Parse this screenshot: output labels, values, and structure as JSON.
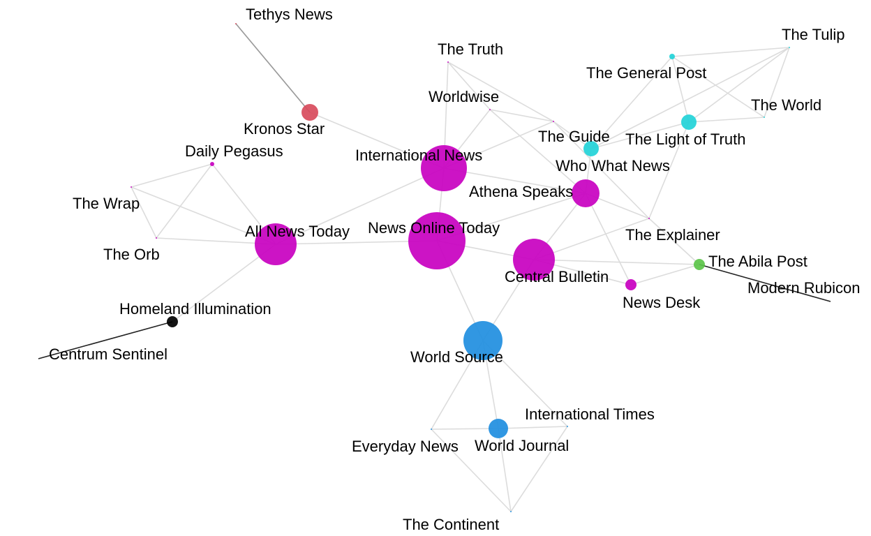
{
  "colors": {
    "magenta": "#c800c0",
    "blue": "#1f8ee0",
    "cyan": "#22d3d8",
    "red": "#d84b5c",
    "green": "#5cc44a",
    "black": "#000000",
    "edge": "#dcdcdc"
  },
  "nodes": [
    {
      "id": "tethys_news",
      "label": "Tethys News",
      "group": "red"
    },
    {
      "id": "kronos_star",
      "label": "Kronos Star",
      "group": "red"
    },
    {
      "id": "the_truth",
      "label": "The Truth",
      "group": "magenta"
    },
    {
      "id": "worldwise",
      "label": "Worldwise",
      "group": "magenta"
    },
    {
      "id": "international_news",
      "label": "International News",
      "group": "magenta"
    },
    {
      "id": "daily_pegasus",
      "label": "Daily Pegasus",
      "group": "magenta"
    },
    {
      "id": "the_wrap",
      "label": "The Wrap",
      "group": "magenta"
    },
    {
      "id": "the_orb",
      "label": "The Orb",
      "group": "magenta"
    },
    {
      "id": "all_news_today",
      "label": "All News Today",
      "group": "magenta"
    },
    {
      "id": "news_online_today",
      "label": "News Online Today",
      "group": "magenta"
    },
    {
      "id": "athena_speaks",
      "label": "Athena Speaks",
      "group": "magenta"
    },
    {
      "id": "who_what_news",
      "label": "Who What News",
      "group": "magenta"
    },
    {
      "id": "the_explainer",
      "label": "The Explainer",
      "group": "magenta"
    },
    {
      "id": "central_bulletin",
      "label": "Central Bulletin",
      "group": "magenta"
    },
    {
      "id": "news_desk",
      "label": "News Desk",
      "group": "magenta"
    },
    {
      "id": "the_guide",
      "label": "The Guide",
      "group": "cyan"
    },
    {
      "id": "the_general_post",
      "label": "The General Post",
      "group": "cyan"
    },
    {
      "id": "the_tulip",
      "label": "The Tulip",
      "group": "cyan"
    },
    {
      "id": "the_world",
      "label": "The World",
      "group": "cyan"
    },
    {
      "id": "the_light_of_truth",
      "label": "The Light of Truth",
      "group": "cyan"
    },
    {
      "id": "the_abila_post",
      "label": "The Abila Post",
      "group": "green"
    },
    {
      "id": "modern_rubicon",
      "label": "Modern Rubicon",
      "group": "black"
    },
    {
      "id": "homeland_illumination",
      "label": "Homeland Illumination",
      "group": "black"
    },
    {
      "id": "centrum_sentinel",
      "label": "Centrum Sentinel",
      "group": "black"
    },
    {
      "id": "world_source",
      "label": "World Source",
      "group": "blue"
    },
    {
      "id": "world_journal",
      "label": "World Journal",
      "group": "blue"
    },
    {
      "id": "international_times",
      "label": "International Times",
      "group": "blue"
    },
    {
      "id": "everyday_news",
      "label": "Everyday News",
      "group": "blue"
    },
    {
      "id": "the_continent",
      "label": "The Continent",
      "group": "blue"
    }
  ],
  "edges": [
    [
      "tethys_news",
      "kronos_star"
    ],
    [
      "kronos_star",
      "international_news"
    ],
    [
      "the_truth",
      "international_news"
    ],
    [
      "the_truth",
      "worldwise"
    ],
    [
      "the_truth",
      "who_what_news"
    ],
    [
      "worldwise",
      "international_news"
    ],
    [
      "worldwise",
      "athena_speaks"
    ],
    [
      "worldwise",
      "who_what_news"
    ],
    [
      "international_news",
      "news_online_today"
    ],
    [
      "international_news",
      "athena_speaks"
    ],
    [
      "international_news",
      "who_what_news"
    ],
    [
      "international_news",
      "all_news_today"
    ],
    [
      "daily_pegasus",
      "the_wrap"
    ],
    [
      "daily_pegasus",
      "the_orb"
    ],
    [
      "daily_pegasus",
      "all_news_today"
    ],
    [
      "the_wrap",
      "the_orb"
    ],
    [
      "the_wrap",
      "all_news_today"
    ],
    [
      "the_orb",
      "all_news_today"
    ],
    [
      "all_news_today",
      "news_online_today"
    ],
    [
      "all_news_today",
      "homeland_illumination"
    ],
    [
      "news_online_today",
      "athena_speaks"
    ],
    [
      "news_online_today",
      "central_bulletin"
    ],
    [
      "news_online_today",
      "world_source"
    ],
    [
      "athena_speaks",
      "central_bulletin"
    ],
    [
      "athena_speaks",
      "the_explainer"
    ],
    [
      "athena_speaks",
      "news_desk"
    ],
    [
      "athena_speaks",
      "the_guide"
    ],
    [
      "who_what_news",
      "the_guide"
    ],
    [
      "who_what_news",
      "the_explainer"
    ],
    [
      "central_bulletin",
      "news_desk"
    ],
    [
      "central_bulletin",
      "the_abila_post"
    ],
    [
      "central_bulletin",
      "the_explainer"
    ],
    [
      "central_bulletin",
      "world_source"
    ],
    [
      "the_explainer",
      "the_abila_post"
    ],
    [
      "news_desk",
      "the_abila_post"
    ],
    [
      "the_guide",
      "the_general_post"
    ],
    [
      "the_guide",
      "the_light_of_truth"
    ],
    [
      "the_guide",
      "the_tulip"
    ],
    [
      "the_general_post",
      "the_tulip"
    ],
    [
      "the_general_post",
      "the_world"
    ],
    [
      "the_general_post",
      "the_light_of_truth"
    ],
    [
      "the_tulip",
      "the_world"
    ],
    [
      "the_tulip",
      "the_light_of_truth"
    ],
    [
      "the_world",
      "the_light_of_truth"
    ],
    [
      "the_light_of_truth",
      "the_explainer"
    ],
    [
      "world_source",
      "world_journal"
    ],
    [
      "world_source",
      "everyday_news"
    ],
    [
      "world_source",
      "international_times"
    ],
    [
      "world_journal",
      "everyday_news"
    ],
    [
      "world_journal",
      "international_times"
    ],
    [
      "world_journal",
      "the_continent"
    ],
    [
      "everyday_news",
      "the_continent"
    ],
    [
      "international_times",
      "the_continent"
    ]
  ],
  "strong_edges": [
    [
      "the_abila_post",
      "modern_rubicon"
    ],
    [
      "homeland_illumination",
      "centrum_sentinel"
    ]
  ]
}
